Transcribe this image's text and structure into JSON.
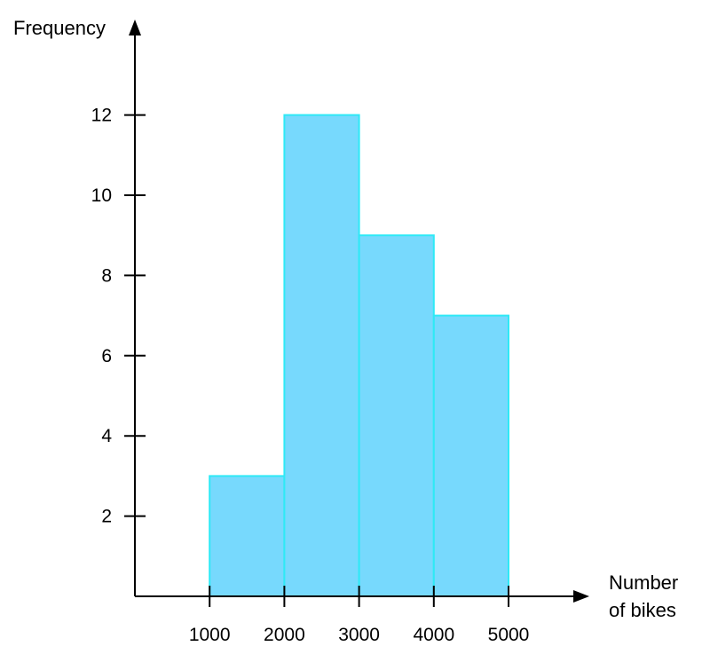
{
  "chart_data": {
    "type": "bar",
    "subtype": "histogram",
    "bins": [
      {
        "from": 1000,
        "to": 2000,
        "frequency": 3
      },
      {
        "from": 2000,
        "to": 3000,
        "frequency": 12
      },
      {
        "from": 3000,
        "to": 4000,
        "frequency": 9
      },
      {
        "from": 4000,
        "to": 5000,
        "frequency": 7
      }
    ],
    "xticks": [
      "1000",
      "2000",
      "3000",
      "4000",
      "5000"
    ],
    "yticks": [
      "2",
      "4",
      "6",
      "8",
      "10",
      "12"
    ],
    "xlabel_line1": "Number",
    "xlabel_line2": "of bikes",
    "ylabel": "Frequency",
    "xlim": [
      0,
      5800
    ],
    "ylim": [
      0,
      12
    ],
    "grid": false,
    "bar_fill": "#77d9fd",
    "bar_stroke": "#2ee9f6"
  }
}
